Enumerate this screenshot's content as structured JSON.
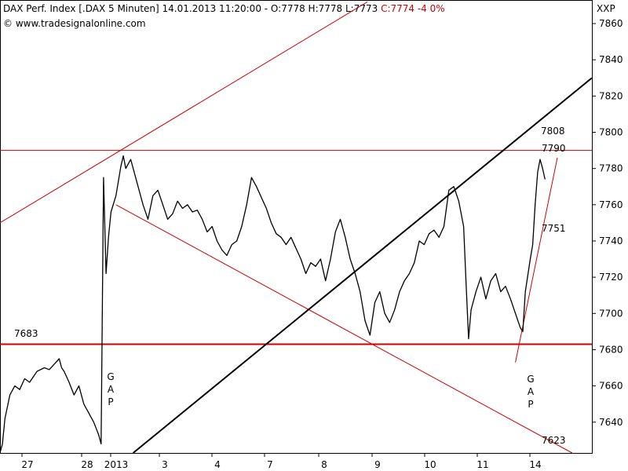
{
  "header": {
    "title": "DAX Perf. Index [.DAX  5 Minuten] 14.01.2013 11:20:00 - O:7778 H:7778 L:7773",
    "change": "C:7774 -4 0%",
    "source": "© www.tradesignalonline.com",
    "symbol": "XXP"
  },
  "colors": {
    "price": "#000000",
    "trend_red": "#cc0000",
    "gap": "#0000cc",
    "frame": "#000000"
  },
  "chart_data": {
    "type": "line",
    "title": "DAX Perf. Index [.DAX  5 Minuten]",
    "xlabel": "",
    "ylabel": "",
    "ylim": [
      7623,
      7873
    ],
    "x_ticks": [
      "27",
      "28",
      "2013",
      "3",
      "4",
      "7",
      "8",
      "9",
      "10",
      "11",
      "14"
    ],
    "y_ticks": [
      7640,
      7660,
      7680,
      7700,
      7720,
      7740,
      7760,
      7780,
      7800,
      7820,
      7840,
      7860
    ],
    "series": [
      {
        "values": [
          [
            0,
            7623
          ],
          [
            1,
            7628
          ],
          [
            2,
            7642
          ],
          [
            4,
            7655
          ],
          [
            6,
            7660
          ],
          [
            8,
            7658
          ],
          [
            10,
            7664
          ],
          [
            12,
            7662
          ],
          [
            15,
            7668
          ],
          [
            18,
            7670
          ],
          [
            20,
            7669
          ],
          [
            22,
            7672
          ],
          [
            24,
            7675
          ],
          [
            25,
            7670
          ],
          [
            26,
            7668
          ],
          [
            28,
            7662
          ],
          [
            30,
            7655
          ],
          [
            32,
            7660
          ],
          [
            34,
            7650
          ],
          [
            36,
            7645
          ],
          [
            38,
            7640
          ],
          [
            40,
            7633
          ],
          [
            41,
            7628
          ],
          [
            42,
            7775
          ],
          [
            43,
            7722
          ],
          [
            44,
            7742
          ],
          [
            45,
            7756
          ],
          [
            47,
            7765
          ],
          [
            49,
            7781
          ],
          [
            50,
            7787
          ],
          [
            51,
            7780
          ],
          [
            53,
            7785
          ],
          [
            55,
            7775
          ],
          [
            58,
            7760
          ],
          [
            60,
            7752
          ],
          [
            62,
            7765
          ],
          [
            64,
            7768
          ],
          [
            66,
            7760
          ],
          [
            68,
            7752
          ],
          [
            70,
            7755
          ],
          [
            72,
            7762
          ],
          [
            74,
            7758
          ],
          [
            76,
            7760
          ],
          [
            78,
            7756
          ],
          [
            80,
            7757
          ],
          [
            82,
            7752
          ],
          [
            84,
            7745
          ],
          [
            86,
            7748
          ],
          [
            88,
            7740
          ],
          [
            90,
            7735
          ],
          [
            92,
            7732
          ],
          [
            94,
            7738
          ],
          [
            96,
            7740
          ],
          [
            98,
            7748
          ],
          [
            100,
            7760
          ],
          [
            102,
            7775
          ],
          [
            104,
            7770
          ],
          [
            106,
            7764
          ],
          [
            108,
            7758
          ],
          [
            110,
            7750
          ],
          [
            112,
            7744
          ],
          [
            114,
            7742
          ],
          [
            116,
            7738
          ],
          [
            118,
            7742
          ],
          [
            120,
            7736
          ],
          [
            122,
            7730
          ],
          [
            124,
            7722
          ],
          [
            126,
            7728
          ],
          [
            128,
            7726
          ],
          [
            130,
            7730
          ],
          [
            132,
            7718
          ],
          [
            134,
            7730
          ],
          [
            136,
            7745
          ],
          [
            138,
            7752
          ],
          [
            140,
            7742
          ],
          [
            142,
            7730
          ],
          [
            144,
            7722
          ],
          [
            146,
            7712
          ],
          [
            148,
            7696
          ],
          [
            150,
            7688
          ],
          [
            152,
            7706
          ],
          [
            154,
            7712
          ],
          [
            156,
            7700
          ],
          [
            158,
            7695
          ],
          [
            160,
            7702
          ],
          [
            162,
            7712
          ],
          [
            164,
            7718
          ],
          [
            166,
            7722
          ],
          [
            168,
            7728
          ],
          [
            170,
            7740
          ],
          [
            172,
            7738
          ],
          [
            174,
            7744
          ],
          [
            176,
            7746
          ],
          [
            178,
            7742
          ],
          [
            180,
            7748
          ],
          [
            182,
            7768
          ],
          [
            184,
            7770
          ],
          [
            186,
            7762
          ],
          [
            188,
            7748
          ],
          [
            189,
            7716
          ],
          [
            190,
            7686
          ],
          [
            191,
            7702
          ],
          [
            193,
            7712
          ],
          [
            195,
            7720
          ],
          [
            197,
            7708
          ],
          [
            199,
            7718
          ],
          [
            201,
            7722
          ],
          [
            203,
            7712
          ],
          [
            205,
            7715
          ],
          [
            207,
            7708
          ],
          [
            209,
            7700
          ],
          [
            211,
            7692
          ],
          [
            212,
            7690
          ],
          [
            213,
            7712
          ],
          [
            215,
            7730
          ],
          [
            216,
            7738
          ],
          [
            217,
            7760
          ],
          [
            218,
            7778
          ],
          [
            219,
            7785
          ],
          [
            220,
            7780
          ],
          [
            221,
            7774
          ]
        ]
      }
    ],
    "lines": [
      {
        "kind": "horizontal",
        "y": 7790,
        "label": "7790",
        "color": "#cc0000"
      },
      {
        "kind": "horizontal",
        "y": 7683,
        "label": "7683",
        "color": "#cc0000"
      },
      {
        "kind": "trend",
        "from": [
          0,
          7750
        ],
        "to": [
          149,
          7872
        ],
        "label": "",
        "color": "#cc0000"
      },
      {
        "kind": "trend",
        "from": [
          47,
          7760
        ],
        "to": [
          232,
          7623
        ],
        "label": "7623",
        "color": "#cc0000"
      },
      {
        "kind": "trend",
        "from": [
          54,
          7623
        ],
        "to": [
          240,
          7830
        ],
        "label": "7808",
        "color": "#000000"
      },
      {
        "kind": "trend",
        "from": [
          209,
          7673
        ],
        "to": [
          226,
          7786
        ],
        "label": "7751",
        "color": "#cc0000"
      }
    ],
    "annotations": [
      "G A P",
      "G A P"
    ]
  }
}
